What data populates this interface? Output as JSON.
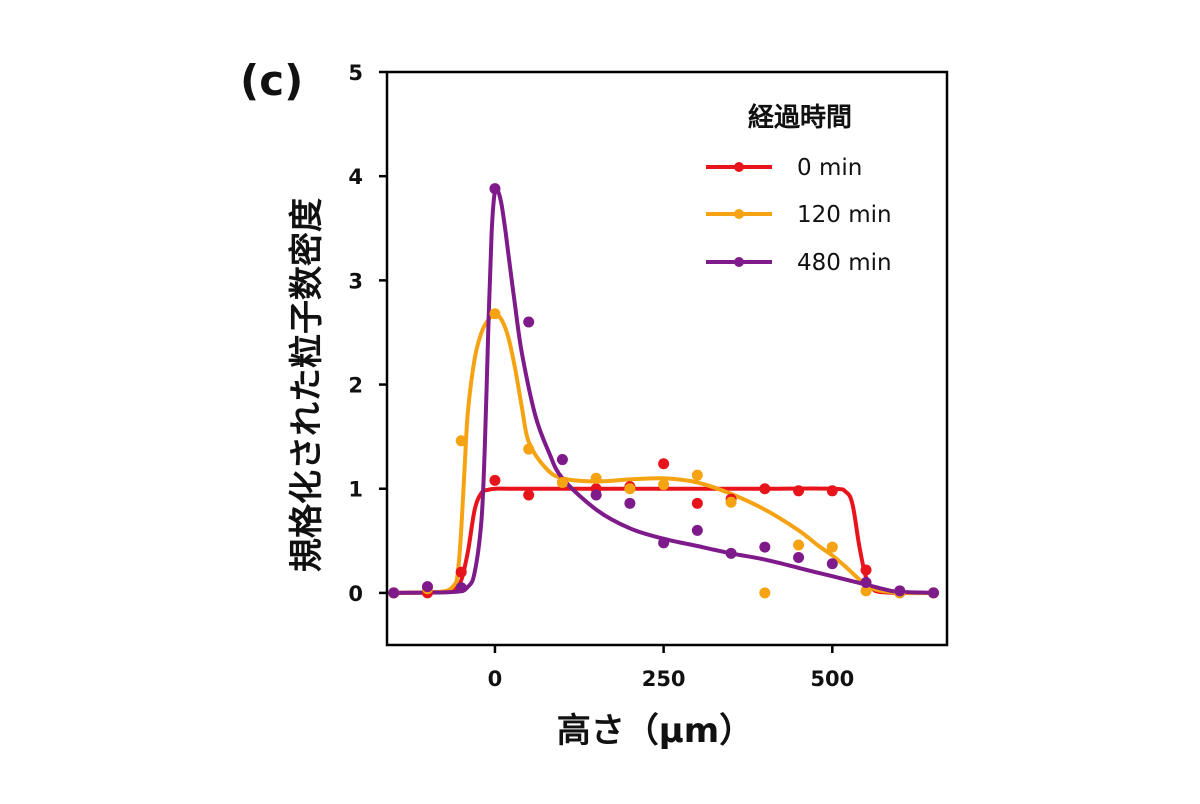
{
  "panel_label": "(c)",
  "chart_data": {
    "type": "scatter",
    "title": "",
    "xlabel": "高さ（μm）",
    "ylabel": "規格化された粒子数密度",
    "xlim": [
      -160,
      670
    ],
    "ylim": [
      -0.5,
      5
    ],
    "xticks": [
      0,
      250,
      500
    ],
    "yticks": [
      0,
      1,
      2,
      3,
      4,
      5
    ],
    "grid": false,
    "legend": {
      "title": "経過時間",
      "position": "top-right"
    },
    "series": [
      {
        "name": "0 min",
        "color": "#e8141c",
        "x": [
          -150,
          -100,
          -50,
          0,
          50,
          100,
          150,
          200,
          250,
          300,
          350,
          400,
          450,
          500,
          550,
          600,
          650
        ],
        "y": [
          0,
          0,
          0.2,
          1.08,
          0.94,
          1.06,
          1.0,
          1.02,
          1.24,
          0.86,
          0.9,
          1.0,
          0.98,
          0.98,
          0.22,
          0,
          0
        ],
        "fit_x": [
          -150,
          -80,
          -60,
          -50,
          -40,
          -30,
          -20,
          -10,
          0,
          25,
          100,
          200,
          300,
          400,
          500,
          520,
          530,
          540,
          550,
          560,
          570,
          600,
          650
        ],
        "fit_y": [
          0,
          0.01,
          0.04,
          0.12,
          0.4,
          0.8,
          0.96,
          0.99,
          1.0,
          1.0,
          1.0,
          1.0,
          1.0,
          1.0,
          1.0,
          0.97,
          0.85,
          0.45,
          0.15,
          0.04,
          0.01,
          0,
          0
        ]
      },
      {
        "name": "120 min",
        "color": "#f5a312",
        "x": [
          -150,
          -100,
          -50,
          0,
          50,
          100,
          150,
          200,
          250,
          300,
          350,
          400,
          450,
          500,
          550,
          600,
          650
        ],
        "y": [
          0,
          0.04,
          1.46,
          2.68,
          1.38,
          1.06,
          1.1,
          1.0,
          1.04,
          1.13,
          0.87,
          0.0,
          0.46,
          0.44,
          0.02,
          0,
          0
        ],
        "fit_x": [
          -150,
          -80,
          -60,
          -55,
          -50,
          -45,
          -40,
          -30,
          -20,
          -10,
          0,
          10,
          20,
          30,
          40,
          50,
          75,
          100,
          150,
          200,
          250,
          300,
          350,
          400,
          450,
          480,
          500,
          520,
          540,
          560,
          600,
          650
        ],
        "fit_y": [
          0,
          0.01,
          0.08,
          0.2,
          0.6,
          1.2,
          1.75,
          2.25,
          2.5,
          2.62,
          2.68,
          2.62,
          2.45,
          2.15,
          1.78,
          1.45,
          1.2,
          1.1,
          1.07,
          1.09,
          1.1,
          1.06,
          0.95,
          0.8,
          0.6,
          0.45,
          0.36,
          0.25,
          0.13,
          0.04,
          0,
          0
        ]
      },
      {
        "name": "480 min",
        "color": "#7e1a8a",
        "x": [
          -150,
          -100,
          -50,
          0,
          50,
          100,
          150,
          200,
          250,
          300,
          350,
          400,
          450,
          500,
          550,
          600,
          650
        ],
        "y": [
          0,
          0.06,
          0.05,
          3.88,
          2.6,
          1.28,
          0.94,
          0.86,
          0.48,
          0.6,
          0.38,
          0.44,
          0.34,
          0.28,
          0.1,
          0.02,
          0
        ],
        "fit_x": [
          -150,
          -60,
          -40,
          -30,
          -20,
          -15,
          -10,
          -5,
          0,
          5,
          10,
          15,
          20,
          30,
          40,
          60,
          80,
          100,
          150,
          200,
          250,
          300,
          350,
          400,
          450,
          500,
          550,
          580,
          600,
          650
        ],
        "fit_y": [
          0,
          0.01,
          0.06,
          0.2,
          0.7,
          1.4,
          2.5,
          3.45,
          3.86,
          3.85,
          3.72,
          3.5,
          3.25,
          2.75,
          2.3,
          1.7,
          1.35,
          1.1,
          0.8,
          0.62,
          0.52,
          0.45,
          0.38,
          0.32,
          0.24,
          0.16,
          0.08,
          0.03,
          0.01,
          0
        ]
      }
    ]
  }
}
